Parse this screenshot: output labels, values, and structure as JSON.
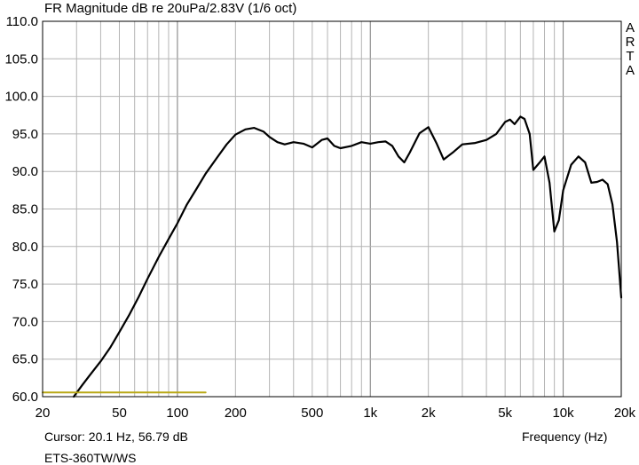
{
  "chart_data": {
    "type": "line",
    "title": "FR Magnitude dB re 20uPa/2.83V (1/6 oct)",
    "xlabel": "Frequency (Hz)",
    "ylabel": "",
    "xscale": "log",
    "xlim": [
      20,
      20000
    ],
    "ylim": [
      60,
      110
    ],
    "grid": true,
    "x_tick_labels": [
      "20",
      "50",
      "100",
      "200",
      "500",
      "1k",
      "2k",
      "5k",
      "10k",
      "20k"
    ],
    "x_tick_values": [
      20,
      50,
      100,
      200,
      500,
      1000,
      2000,
      5000,
      10000,
      20000
    ],
    "y_tick_labels": [
      "110.0",
      "105.0",
      "100.0",
      "95.0",
      "90.0",
      "85.0",
      "80.0",
      "75.0",
      "70.0",
      "65.0",
      "60.0"
    ],
    "y_tick_values": [
      110,
      105,
      100,
      95,
      90,
      85,
      80,
      75,
      70,
      65,
      60
    ],
    "series": [
      {
        "color": "#000000",
        "x": [
          29,
          32,
          35,
          40,
          45,
          50,
          56,
          63,
          70,
          80,
          90,
          100,
          112,
          125,
          140,
          160,
          180,
          200,
          225,
          250,
          280,
          300,
          330,
          360,
          400,
          450,
          500,
          560,
          600,
          650,
          700,
          800,
          900,
          1000,
          1100,
          1200,
          1300,
          1400,
          1500,
          1600,
          1800,
          2000,
          2200,
          2400,
          2700,
          3000,
          3500,
          4000,
          4500,
          5000,
          5300,
          5600,
          6000,
          6300,
          6700,
          7000,
          7500,
          8000,
          8500,
          9000,
          9500,
          10000,
          11000,
          12000,
          13000,
          14000,
          15000,
          16000,
          17000,
          18000,
          19000,
          20000
        ],
        "y": [
          60.0,
          61.5,
          62.8,
          64.7,
          66.6,
          68.6,
          70.8,
          73.3,
          75.7,
          78.6,
          81.0,
          83.1,
          85.6,
          87.6,
          89.7,
          91.8,
          93.6,
          94.9,
          95.6,
          95.8,
          95.3,
          94.6,
          93.9,
          93.6,
          93.9,
          93.7,
          93.2,
          94.2,
          94.4,
          93.4,
          93.1,
          93.4,
          93.9,
          93.7,
          93.9,
          94.0,
          93.4,
          92.0,
          91.2,
          92.5,
          95.1,
          95.9,
          93.8,
          91.6,
          92.6,
          93.6,
          93.8,
          94.2,
          95.0,
          96.6,
          96.9,
          96.3,
          97.3,
          97.0,
          95.0,
          90.2,
          91.1,
          92.0,
          88.5,
          82.0,
          83.5,
          87.5,
          90.9,
          92.0,
          91.2,
          88.5,
          88.6,
          88.9,
          88.3,
          85.6,
          80.6,
          73.2
        ]
      },
      {
        "color": "#b8a814",
        "x": [
          20,
          140
        ],
        "y": [
          60.55,
          60.55
        ]
      }
    ]
  },
  "cursor_readout": "Cursor: 20.1 Hz, 56.79 dB",
  "device_name": "ETS-360TW/WS",
  "arta_letters": [
    "A",
    "R",
    "T",
    "A"
  ]
}
